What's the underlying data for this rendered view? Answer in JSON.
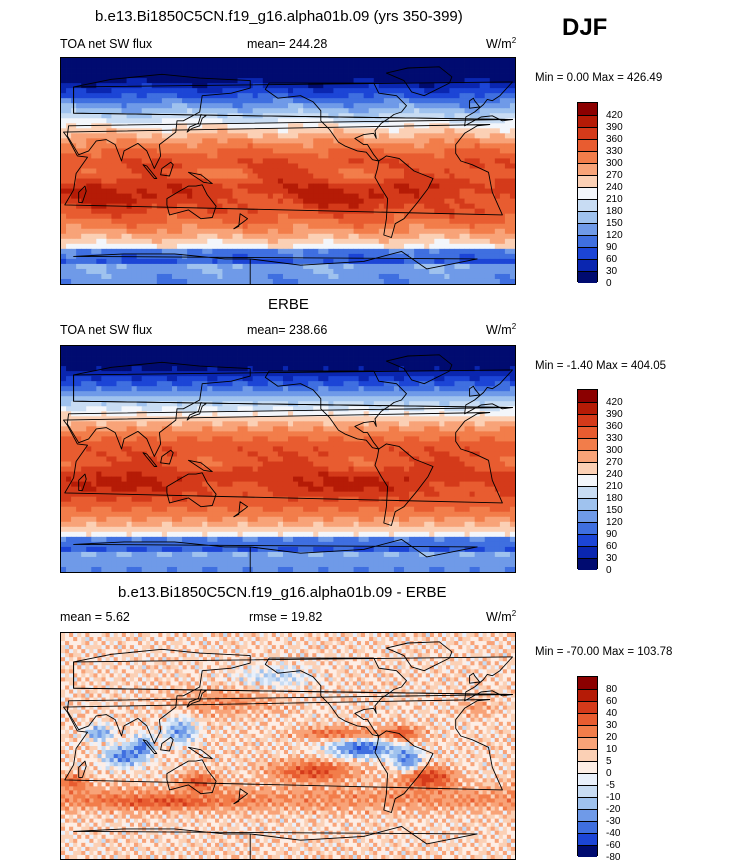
{
  "season": "DJF",
  "chart_data": [
    {
      "type": "heatmap",
      "title": "b.e13.Bi1850C5CN.f19_g16.alpha01b.09 (yrs 350-399)",
      "variable": "TOA net SW flux",
      "stat_label": "mean= 244.28",
      "units": "W/m",
      "units_sup": "2",
      "range_label": "Min =   0.00 Max = 426.49",
      "colorbar_levels": [
        "420",
        "390",
        "360",
        "330",
        "300",
        "270",
        "240",
        "210",
        "180",
        "150",
        "120",
        "90",
        "60",
        "30",
        "0"
      ],
      "colorbar_colors": [
        "#8b0000",
        "#b51b06",
        "#d43a1a",
        "#e85c30",
        "#f27d4a",
        "#f8a378",
        "#fbd0b5",
        "#f3f6fb",
        "#c8dcf3",
        "#9fc2ee",
        "#6f9ae8",
        "#3f6fe0",
        "#1c45d6",
        "#0a26b0",
        "#000b70"
      ],
      "kind": "absolute"
    },
    {
      "type": "heatmap",
      "title": "ERBE",
      "variable": "TOA net SW flux",
      "stat_label": "mean= 238.66",
      "units": "W/m",
      "units_sup": "2",
      "range_label": "Min =  -1.40 Max = 404.05",
      "colorbar_levels": [
        "420",
        "390",
        "360",
        "330",
        "300",
        "270",
        "240",
        "210",
        "180",
        "150",
        "120",
        "90",
        "60",
        "30",
        "0"
      ],
      "colorbar_colors": [
        "#8b0000",
        "#b51b06",
        "#d43a1a",
        "#e85c30",
        "#f27d4a",
        "#f8a378",
        "#fbd0b5",
        "#f3f6fb",
        "#c8dcf3",
        "#9fc2ee",
        "#6f9ae8",
        "#3f6fe0",
        "#1c45d6",
        "#0a26b0",
        "#000b70"
      ],
      "kind": "absolute"
    },
    {
      "type": "heatmap",
      "title": "b.e13.Bi1850C5CN.f19_g16.alpha01b.09 - ERBE",
      "variable": "mean =   5.62",
      "stat_label": "rmse =  19.82",
      "units": "W/m",
      "units_sup": "2",
      "range_label": "Min = -70.00 Max = 103.78",
      "colorbar_levels": [
        "80",
        "60",
        "40",
        "30",
        "20",
        "10",
        "5",
        "0",
        "-5",
        "-10",
        "-20",
        "-30",
        "-40",
        "-60",
        "-80"
      ],
      "colorbar_colors": [
        "#8b0000",
        "#b51b06",
        "#d43a1a",
        "#e85c30",
        "#f27d4a",
        "#f8a378",
        "#fbd0b5",
        "#fdeee6",
        "#e9f0fb",
        "#c8dcf3",
        "#9fc2ee",
        "#6f9ae8",
        "#3f6fe0",
        "#1c45d6",
        "#000b70"
      ],
      "kind": "difference"
    }
  ]
}
